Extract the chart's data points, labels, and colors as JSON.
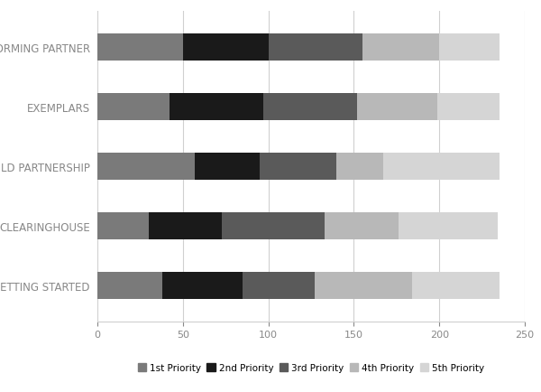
{
  "categories": [
    "GETTING STARTED",
    "CLEARINGHOUSE",
    "BUILD PARTNERSHIP",
    "EXEMPLARS",
    "FORMING PARTNER"
  ],
  "priorities": [
    "1st Priority",
    "2nd Priority",
    "3rd Priority",
    "4th Priority",
    "5th Priority"
  ],
  "colors": [
    "#7a7a7a",
    "#1a1a1a",
    "#5a5a5a",
    "#b8b8b8",
    "#d5d5d5"
  ],
  "values": [
    [
      38,
      47,
      42,
      57,
      51
    ],
    [
      30,
      43,
      60,
      43,
      58
    ],
    [
      57,
      38,
      45,
      27,
      68
    ],
    [
      42,
      55,
      55,
      47,
      36
    ],
    [
      50,
      50,
      55,
      45,
      35
    ]
  ],
  "xlim": [
    0,
    250
  ],
  "xticks": [
    0,
    50,
    100,
    150,
    200,
    250
  ],
  "bar_height": 0.45,
  "background_color": "#ffffff",
  "grid_color": "#d0d0d0",
  "label_fontsize": 8.5,
  "tick_fontsize": 8,
  "legend_fontsize": 7.5,
  "ytick_color": "#888888",
  "xtick_color": "#888888"
}
